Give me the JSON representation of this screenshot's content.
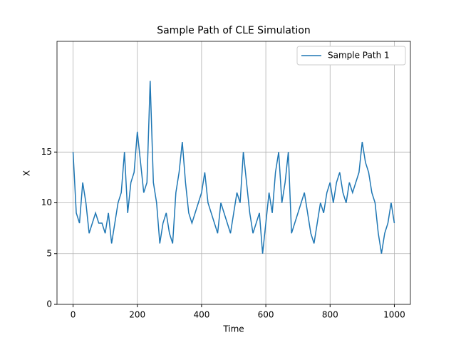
{
  "chart_data": {
    "type": "line",
    "title": "Sample Path of CLE Simulation",
    "x_label": "Time",
    "y_label": "X",
    "x": [
      0,
      10,
      20,
      30,
      40,
      50,
      60,
      70,
      80,
      90,
      100,
      110,
      120,
      130,
      140,
      150,
      160,
      170,
      180,
      190,
      200,
      210,
      220,
      230,
      240,
      250,
      260,
      270,
      280,
      290,
      300,
      310,
      320,
      330,
      340,
      350,
      360,
      370,
      380,
      390,
      400,
      410,
      420,
      430,
      440,
      450,
      460,
      470,
      480,
      490,
      500,
      510,
      520,
      530,
      540,
      550,
      560,
      570,
      580,
      590,
      600,
      610,
      620,
      630,
      640,
      650,
      660,
      670,
      680,
      690,
      700,
      710,
      720,
      730,
      740,
      750,
      760,
      770,
      780,
      790,
      800,
      810,
      820,
      830,
      840,
      850,
      860,
      870,
      880,
      890,
      900,
      910,
      920,
      930,
      940,
      950,
      960,
      970,
      980,
      990,
      1000
    ],
    "series": [
      {
        "name": "Sample Path 1",
        "color": "#1f77b4",
        "values": [
          15,
          9,
          8,
          12,
          10,
          7,
          8,
          9,
          8,
          8,
          7,
          9,
          6,
          8,
          10,
          11,
          15,
          9,
          12,
          13,
          17,
          14,
          11,
          12,
          22,
          12,
          10,
          6,
          8,
          9,
          7,
          6,
          11,
          13,
          16,
          12,
          9,
          8,
          9,
          10,
          11,
          13,
          10,
          9,
          8,
          7,
          10,
          9,
          8,
          7,
          9,
          11,
          10,
          15,
          12,
          9,
          7,
          8,
          9,
          5,
          8,
          11,
          9,
          13,
          15,
          10,
          12,
          15,
          7,
          8,
          9,
          10,
          11,
          9,
          7,
          6,
          8,
          10,
          9,
          11,
          12,
          10,
          12,
          13,
          11,
          10,
          12,
          11,
          12,
          13,
          16,
          14,
          13,
          11,
          10,
          7,
          5,
          7,
          8,
          10,
          8
        ]
      }
    ],
    "xlim": [
      -50,
      1050
    ],
    "ylim": [
      0,
      25.9
    ],
    "xticks": [
      0,
      200,
      400,
      600,
      800,
      1000
    ],
    "yticks": [
      0,
      5,
      10,
      15
    ],
    "grid": true,
    "legend": "upper right"
  }
}
